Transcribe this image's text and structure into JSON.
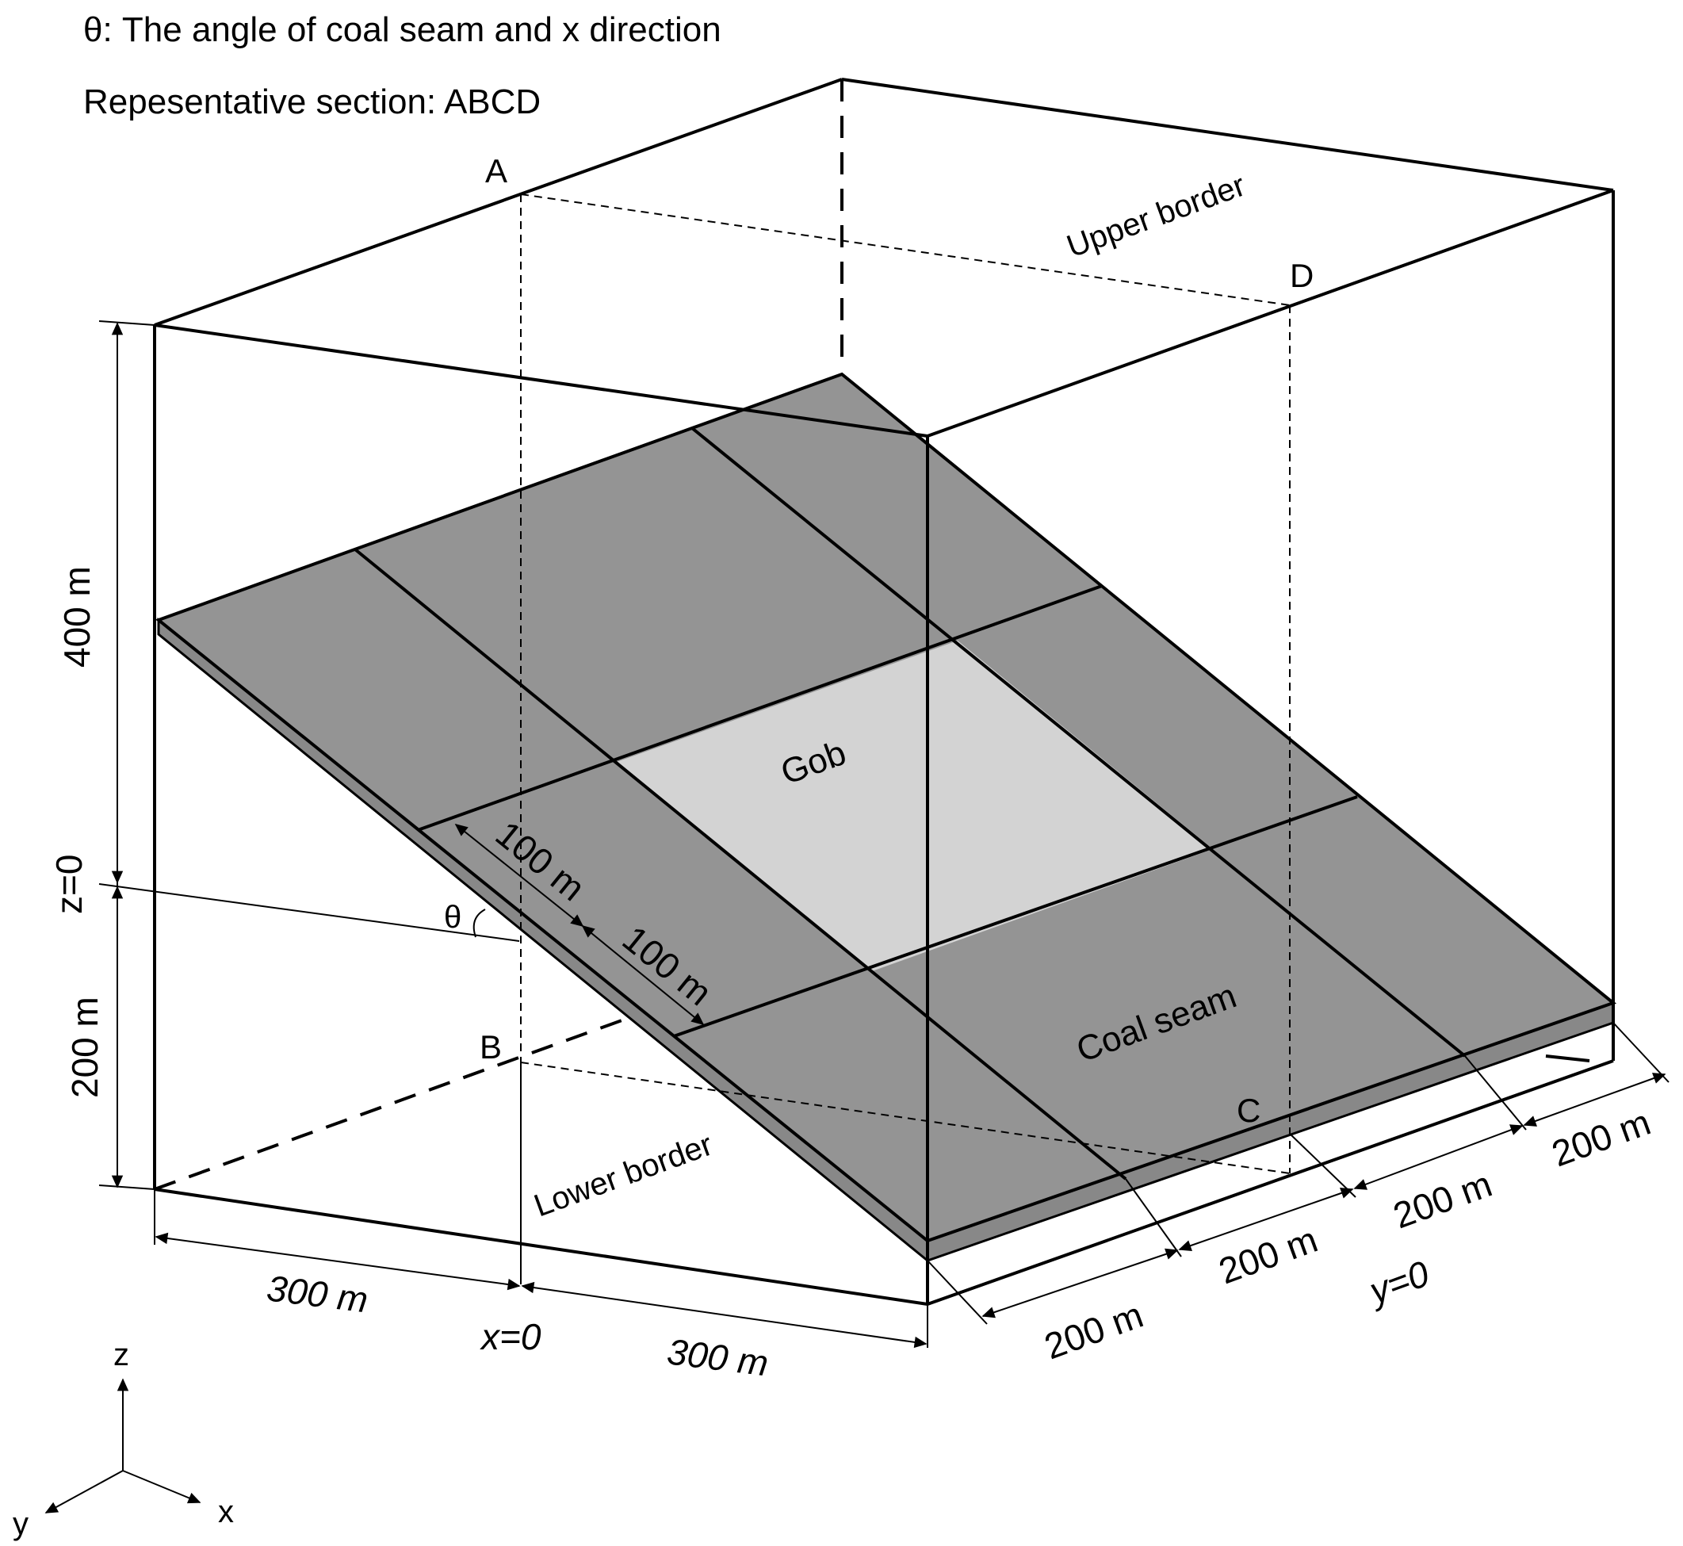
{
  "header": {
    "theta_def": "θ: The angle of coal seam and x direction",
    "section_def": "Repesentative section:  ABCD"
  },
  "points": {
    "a": "A",
    "b": "B",
    "c": "C",
    "d": "D"
  },
  "regions": {
    "gob": "Gob",
    "coal_seam": "Coal seam",
    "upper_border": "Upper border",
    "lower_border": "Lower border"
  },
  "dims": {
    "h400": "400 m",
    "h200": "200 m",
    "z0": "z=0",
    "x300_left": "300 m",
    "x300_right": "300 m",
    "x0": "x=0",
    "y200_1": "200 m",
    "y200_2": "200 m",
    "y200_3": "200 m",
    "y200_4": "200 m",
    "y0": "y=0",
    "seam100_1": "100 m",
    "seam100_2": "100 m",
    "theta": "θ"
  },
  "axes": {
    "z": "z",
    "x": "x",
    "y": "y"
  },
  "colors": {
    "seam": "#949494",
    "gob": "#d3d3d3",
    "line": "#000000"
  }
}
